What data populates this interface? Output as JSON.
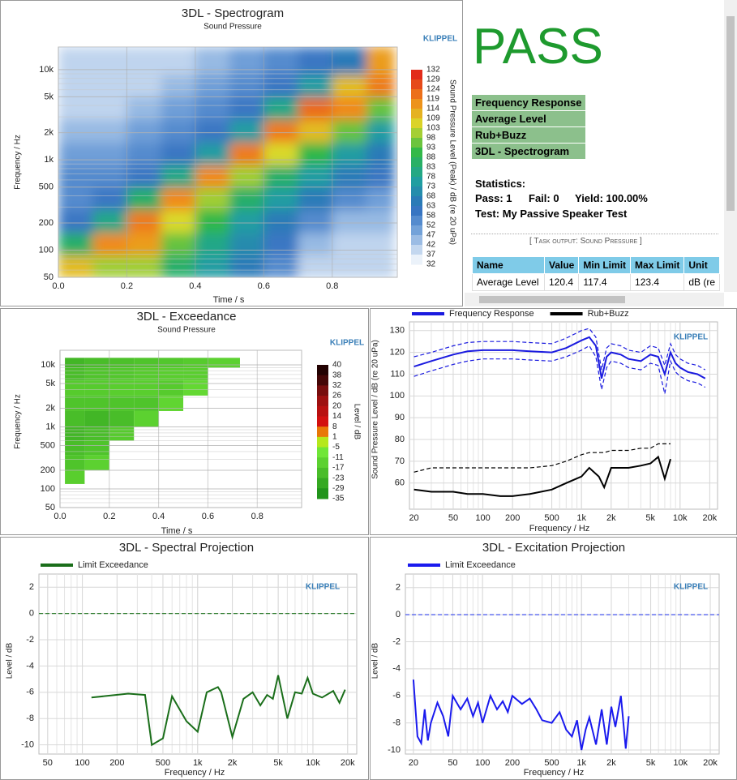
{
  "chart_data": [
    {
      "type": "heatmap",
      "title": "3DL - Spectrogram",
      "subtitle": "Sound Pressure",
      "logo": "KLIPPEL",
      "xlabel": "Time / s",
      "ylabel": "Frequency / Hz",
      "colorbar_label": "Sound Pressure Level (Peak) / dB (re 20 uPa)",
      "xscale": "linear",
      "yscale": "log",
      "xlim": [
        0,
        0.99
      ],
      "ylim": [
        50,
        17800
      ],
      "xticks": [
        {
          "value": 0,
          "label": "0.0"
        },
        0.2,
        0.4,
        0.6,
        0.8
      ],
      "yticks": [
        50,
        100,
        200,
        500,
        {
          "value": 1000,
          "label": "1k"
        },
        {
          "value": 2000,
          "label": "2k"
        },
        {
          "value": 5000,
          "label": "5k"
        },
        {
          "value": 10000,
          "label": "10k"
        }
      ],
      "x_edges": [
        0,
        0.1,
        0.2,
        0.3,
        0.4,
        0.5,
        0.6,
        0.7,
        0.8,
        0.9,
        0.98
      ],
      "y_edges": [
        50,
        89,
        158,
        281,
        500,
        889,
        1581,
        2812,
        5000,
        8891,
        17800
      ],
      "z": [
        [
          110,
          85,
          60,
          55,
          55,
          50,
          45,
          40,
          40,
          40
        ],
        [
          100,
          118,
          80,
          60,
          55,
          50,
          45,
          40,
          40,
          40
        ],
        [
          100,
          115,
          120,
          85,
          60,
          55,
          50,
          45,
          40,
          40
        ],
        [
          85,
          95,
          105,
          118,
          80,
          60,
          55,
          50,
          45,
          40
        ],
        [
          75,
          80,
          90,
          100,
          118,
          75,
          60,
          55,
          50,
          45
        ],
        [
          65,
          70,
          75,
          85,
          100,
          120,
          75,
          60,
          55,
          50
        ],
        [
          55,
          60,
          65,
          75,
          85,
          105,
          120,
          80,
          60,
          55
        ],
        [
          40,
          45,
          55,
          65,
          75,
          90,
          110,
          122,
          75,
          60
        ],
        [
          40,
          40,
          45,
          55,
          65,
          75,
          95,
          118,
          110,
          65
        ],
        [
          40,
          40,
          45,
          50,
          60,
          65,
          75,
          95,
          120,
          115
        ]
      ],
      "colorbar_ticks": [
        132,
        129,
        124,
        119,
        114,
        109,
        103,
        98,
        93,
        88,
        83,
        78,
        73,
        68,
        63,
        58,
        52,
        47,
        42,
        37,
        32
      ],
      "colorscale": [
        [
          32,
          "#ffffff"
        ],
        [
          50,
          "#6f9fd8"
        ],
        [
          62,
          "#2f6fbf"
        ],
        [
          76,
          "#1fa0a0"
        ],
        [
          90,
          "#2db84a"
        ],
        [
          105,
          "#d9d92a"
        ],
        [
          118,
          "#f08a1a"
        ],
        [
          132,
          "#e0201a"
        ]
      ]
    },
    {
      "type": "heatmap",
      "title": "3DL - Exceedance",
      "subtitle": "Sound Pressure",
      "logo": "KLIPPEL",
      "xlabel": "Time / s",
      "ylabel": "Frequency / Hz",
      "colorbar_label": "Level / dB",
      "xscale": "linear",
      "yscale": "log",
      "xlim": [
        0,
        0.98
      ],
      "ylim": [
        50,
        17200
      ],
      "xticks": [
        {
          "value": 0,
          "label": "0.0"
        },
        0.2,
        0.4,
        0.6,
        0.8
      ],
      "yticks": [
        50,
        100,
        200,
        500,
        {
          "value": 1000,
          "label": "1k"
        },
        {
          "value": 2000,
          "label": "2k"
        },
        {
          "value": 5000,
          "label": "5k"
        },
        {
          "value": 10000,
          "label": "10k"
        }
      ],
      "x_edges": [
        0.02,
        0.1,
        0.2,
        0.3,
        0.4,
        0.5,
        0.6,
        0.73
      ],
      "y_edges": [
        120,
        200,
        350,
        600,
        1000,
        1800,
        3200,
        5600,
        9000,
        13000
      ],
      "z": [
        [
          -15,
          -18,
          -20,
          -22,
          -20,
          -18,
          -16,
          -20,
          -22
        ],
        [
          null,
          -14,
          -18,
          -20,
          -22,
          -18,
          -16,
          -18,
          -20
        ],
        [
          null,
          null,
          null,
          -16,
          -20,
          -18,
          -15,
          -17,
          -19
        ],
        [
          null,
          null,
          null,
          null,
          -14,
          -18,
          -15,
          -16,
          -18
        ],
        [
          null,
          null,
          null,
          null,
          null,
          -13,
          -16,
          -15,
          -17
        ],
        [
          null,
          null,
          null,
          null,
          null,
          null,
          -12,
          -15,
          -16
        ],
        [
          null,
          null,
          null,
          null,
          null,
          null,
          null,
          null,
          -14
        ]
      ],
      "colorbar_ticks": [
        40,
        38,
        32,
        26,
        20,
        14,
        8,
        1,
        -5,
        -11,
        -17,
        -23,
        -29,
        -35
      ],
      "colorscale": [
        [
          -35,
          "#178a17"
        ],
        [
          -5,
          "#7af03a"
        ],
        [
          1,
          "#f0e000"
        ],
        [
          8,
          "#e01010"
        ],
        [
          26,
          "#901010"
        ],
        [
          40,
          "#1a0000"
        ]
      ]
    },
    {
      "type": "line",
      "logo": "KLIPPEL",
      "xlabel": "Frequency / Hz",
      "ylabel": "Sound Pressure Level / dB (re 20 uPa)",
      "xscale": "log",
      "yscale": "linear",
      "xlim": [
        18,
        24000
      ],
      "ylim": [
        48,
        134
      ],
      "xticks": [
        20,
        50,
        100,
        200,
        500,
        {
          "value": 1000,
          "label": "1k"
        },
        {
          "value": 2000,
          "label": "2k"
        },
        {
          "value": 5000,
          "label": "5k"
        },
        {
          "value": 10000,
          "label": "10k"
        },
        {
          "value": 20000,
          "label": "20k"
        }
      ],
      "yticks": [
        60,
        70,
        80,
        90,
        100,
        110,
        120,
        130
      ],
      "series": [
        {
          "name": "Frequency Response",
          "color": "#1a1adf",
          "x": [
            20,
            30,
            50,
            70,
            100,
            150,
            200,
            300,
            500,
            700,
            1000,
            1200,
            1400,
            1600,
            1800,
            2000,
            2500,
            3000,
            4000,
            5000,
            6000,
            7000,
            8000,
            9000,
            10000,
            12000,
            15000,
            18000
          ],
          "values": [
            113.5,
            116,
            119,
            120.5,
            121,
            121,
            121,
            120.5,
            120,
            122,
            125.5,
            127,
            123,
            108,
            118,
            120,
            119,
            117,
            116,
            119,
            118,
            110,
            120,
            115,
            113,
            111,
            110,
            108
          ]
        },
        {
          "color": "#1a1adf",
          "dash": true,
          "x": [
            20,
            30,
            50,
            70,
            100,
            150,
            200,
            300,
            500,
            700,
            1000,
            1200,
            1400,
            1600,
            1800,
            2000,
            2500,
            3000,
            4000,
            5000,
            6000,
            7000,
            8000,
            9000,
            10000,
            12000,
            15000,
            18000
          ],
          "values": [
            118,
            120,
            123,
            124.5,
            125,
            125,
            125,
            124.5,
            124,
            126.5,
            130,
            131,
            127,
            112,
            122,
            124,
            123,
            121,
            120,
            123,
            122,
            114,
            124,
            119,
            117,
            115,
            114,
            112
          ]
        },
        {
          "color": "#1a1adf",
          "dash": true,
          "x": [
            20,
            30,
            50,
            70,
            100,
            150,
            200,
            300,
            500,
            700,
            1000,
            1200,
            1400,
            1600,
            1800,
            2000,
            2500,
            3000,
            4000,
            5000,
            6000,
            7000,
            8000,
            9000,
            10000,
            12000,
            15000,
            18000
          ],
          "values": [
            109,
            111.5,
            114.5,
            116,
            117,
            117,
            117,
            116.5,
            116,
            118,
            121,
            123,
            118,
            103,
            113,
            116,
            115,
            113,
            112,
            115,
            114,
            101,
            116,
            111,
            109,
            107,
            106,
            104
          ]
        },
        {
          "name": "Rub+Buzz",
          "color": "#000000",
          "x": [
            20,
            30,
            50,
            70,
            100,
            150,
            200,
            300,
            500,
            700,
            1000,
            1200,
            1500,
            1700,
            2000,
            3000,
            4000,
            5000,
            6000,
            7000,
            8000
          ],
          "values": [
            57,
            56,
            56,
            55,
            55,
            54,
            54,
            55,
            57,
            60,
            63,
            67,
            63,
            58,
            67,
            67,
            68,
            69,
            72,
            62,
            71
          ]
        },
        {
          "color": "#000000",
          "dash": true,
          "x": [
            20,
            30,
            50,
            70,
            100,
            150,
            200,
            300,
            500,
            700,
            1000,
            1200,
            1500,
            1700,
            2000,
            3000,
            4000,
            5000,
            6000,
            7000,
            8000
          ],
          "values": [
            65,
            67,
            67,
            67,
            67,
            67,
            67,
            67,
            68,
            70,
            73,
            74,
            74,
            74,
            75,
            75,
            76,
            76,
            78,
            78,
            78
          ]
        }
      ]
    },
    {
      "type": "line",
      "title": "3DL - Spectral Projection",
      "logo": "KLIPPEL",
      "xlabel": "Frequency / Hz",
      "ylabel": "Level / dB",
      "xscale": "log",
      "yscale": "linear",
      "xlim": [
        42,
        24000
      ],
      "ylim": [
        -10.7,
        3
      ],
      "xticks": [
        50,
        100,
        200,
        500,
        {
          "value": 1000,
          "label": "1k"
        },
        {
          "value": 2000,
          "label": "2k"
        },
        {
          "value": 5000,
          "label": "5k"
        },
        {
          "value": 10000,
          "label": "10k"
        },
        {
          "value": 20000,
          "label": "20k"
        }
      ],
      "yticks": [
        2,
        0,
        -2,
        -4,
        -6,
        -8,
        -10
      ],
      "threshold": 0,
      "threshold_color": "#2e7d2e",
      "series": [
        {
          "name": "Limit Exceedance",
          "color": "#1a6e1a",
          "x": [
            120,
            250,
            350,
            400,
            500,
            600,
            800,
            1000,
            1200,
            1500,
            1600,
            2000,
            2500,
            3000,
            3500,
            4000,
            4500,
            5000,
            6000,
            7000,
            8000,
            9000,
            10000,
            12000,
            15000,
            17000,
            19000
          ],
          "values": [
            -6.4,
            -6.1,
            -6.2,
            -10,
            -9.5,
            -6.3,
            -8.2,
            -9,
            -6,
            -5.6,
            -6,
            -9.4,
            -6.5,
            -6,
            -7,
            -6.2,
            -6.5,
            -4.7,
            -8,
            -6,
            -6.1,
            -4.9,
            -6.1,
            -6.4,
            -5.9,
            -6.8,
            -5.8
          ]
        }
      ]
    },
    {
      "type": "line",
      "title": "3DL - Excitation Projection",
      "logo": "KLIPPEL",
      "xlabel": "Frequency / Hz",
      "ylabel": "Level / dB",
      "xscale": "log",
      "yscale": "linear",
      "xlim": [
        16.6,
        24600
      ],
      "ylim": [
        -10.3,
        3
      ],
      "xticks": [
        20,
        50,
        100,
        200,
        500,
        {
          "value": 1000,
          "label": "1k"
        },
        {
          "value": 2000,
          "label": "2k"
        },
        {
          "value": 5000,
          "label": "5k"
        },
        {
          "value": 10000,
          "label": "10k"
        },
        {
          "value": 20000,
          "label": "20k"
        }
      ],
      "yticks": [
        2,
        0,
        -2,
        -4,
        -6,
        -8,
        -10
      ],
      "threshold": 0,
      "threshold_color": "#3344ee",
      "series": [
        {
          "name": "Limit Exceedance",
          "color": "#1a1aee",
          "x": [
            20,
            22,
            24,
            26,
            28,
            30,
            35,
            40,
            45,
            50,
            60,
            70,
            80,
            90,
            100,
            120,
            140,
            160,
            180,
            200,
            250,
            300,
            350,
            400,
            500,
            600,
            700,
            800,
            900,
            1000,
            1100,
            1200,
            1400,
            1600,
            1800,
            2000,
            2200,
            2500,
            2800,
            3000
          ],
          "values": [
            -4.8,
            -9,
            -9.5,
            -7,
            -9.3,
            -8,
            -6.5,
            -7.5,
            -9,
            -6,
            -7,
            -6.2,
            -7.5,
            -6.5,
            -8,
            -6,
            -7,
            -6.4,
            -7.2,
            -6,
            -6.6,
            -6.2,
            -7,
            -7.8,
            -8,
            -7.2,
            -8.5,
            -9,
            -7.8,
            -10,
            -8.5,
            -7.6,
            -9.6,
            -7,
            -9.6,
            -6.8,
            -8.3,
            -6,
            -9.9,
            -7.5
          ]
        }
      ]
    }
  ],
  "pass_panel": {
    "result": "PASS",
    "tests": [
      "Frequency Response",
      "Average Level",
      "Rub+Buzz",
      "3DL - Spectrogram"
    ],
    "statistics_title": "Statistics:",
    "statistics": [
      "Pass: 1",
      "Fail: 0",
      "Yield: 100.00%"
    ],
    "test_line": "Test: My Passive Speaker Test",
    "task_output": "[ Task output: Sound Pressure ]",
    "table": {
      "header": [
        "Name",
        "Value",
        "Min Limit",
        "Max Limit",
        "Unit"
      ],
      "rows": [
        [
          "Average Level",
          120.4,
          117.4,
          123.4,
          "dB (re"
        ]
      ]
    }
  }
}
